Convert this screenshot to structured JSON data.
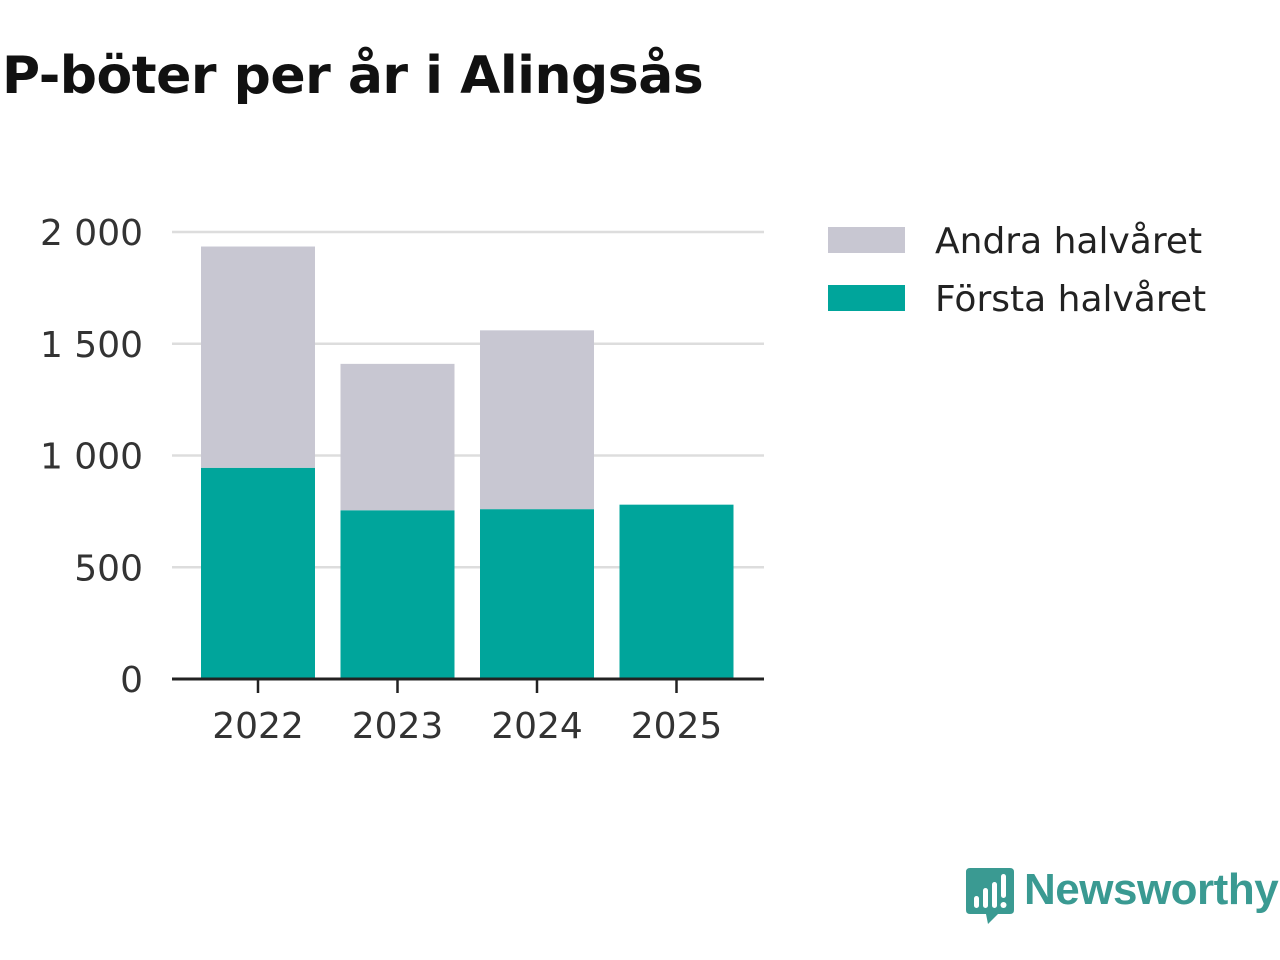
{
  "title": "P-böter per år i Alingsås",
  "colors": {
    "first_half": "#00a59b",
    "second_half": "#c8c7d2",
    "grid": "#dddddd",
    "axis": "#222222",
    "logo": "#3a9a92"
  },
  "chart_data": {
    "type": "bar",
    "stacked": true,
    "title": "P-böter per år i Alingsås",
    "xlabel": "",
    "ylabel": "",
    "categories": [
      "2022",
      "2023",
      "2024",
      "2025"
    ],
    "series": [
      {
        "name": "Första halvåret",
        "values": [
          945,
          755,
          760,
          780
        ]
      },
      {
        "name": "Andra halvåret",
        "values": [
          990,
          655,
          800,
          0
        ]
      }
    ],
    "ylim": [
      0,
      2000
    ],
    "yticks": [
      0,
      500,
      1000,
      1500,
      2000
    ],
    "ytick_labels": [
      "0",
      "500",
      "1 000",
      "1 500",
      "2 000"
    ],
    "grid": true,
    "legend": {
      "position": "top-right",
      "order": [
        "Andra halvåret",
        "Första halvåret"
      ]
    }
  },
  "logo": {
    "text": "Newsworthy",
    "icon": "bar-chart-speech-bubble-icon"
  }
}
